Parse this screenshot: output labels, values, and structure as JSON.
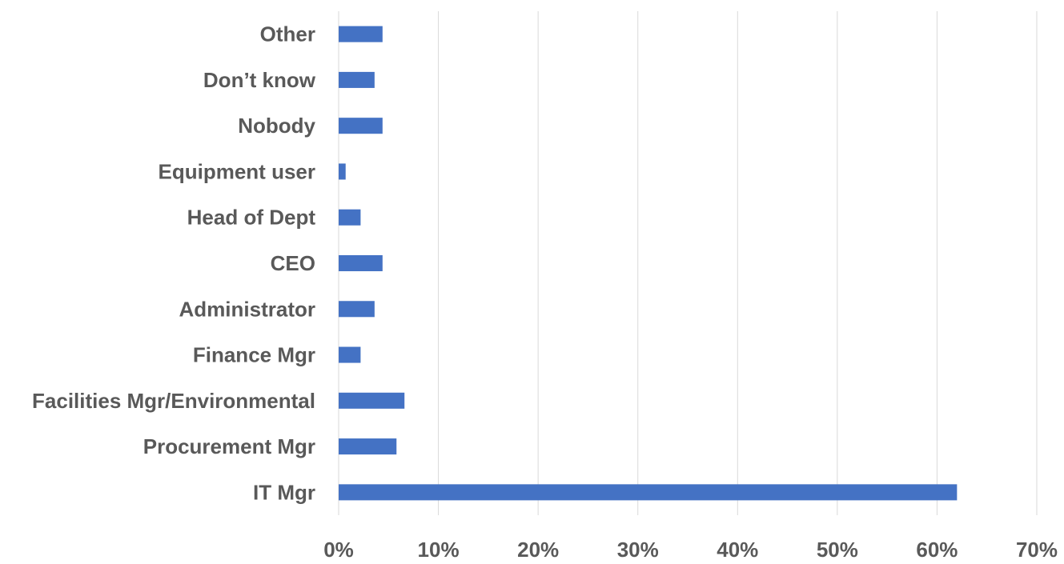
{
  "chart_data": {
    "type": "bar",
    "orientation": "horizontal",
    "title": "",
    "xlabel": "",
    "ylabel": "",
    "categories": [
      "IT Mgr",
      "Procurement Mgr",
      "Facilities Mgr/Environmental",
      "Finance Mgr",
      "Administrator",
      "CEO",
      "Head of Dept",
      "Equipment user",
      "Nobody",
      "Don’t know",
      "Other"
    ],
    "values": [
      0.62,
      0.058,
      0.066,
      0.022,
      0.036,
      0.044,
      0.022,
      0.007,
      0.044,
      0.036,
      0.044
    ],
    "xlim": [
      0,
      0.7
    ],
    "ticks": [
      0,
      0.1,
      0.2,
      0.3,
      0.4,
      0.5,
      0.6,
      0.7
    ],
    "tick_labels": [
      "0%",
      "10%",
      "20%",
      "30%",
      "40%",
      "50%",
      "60%",
      "70%"
    ],
    "grid": true,
    "legend": "none",
    "bar_color": "#4472c4",
    "grid_color": "#d9d9d9",
    "text_color": "#595959"
  }
}
